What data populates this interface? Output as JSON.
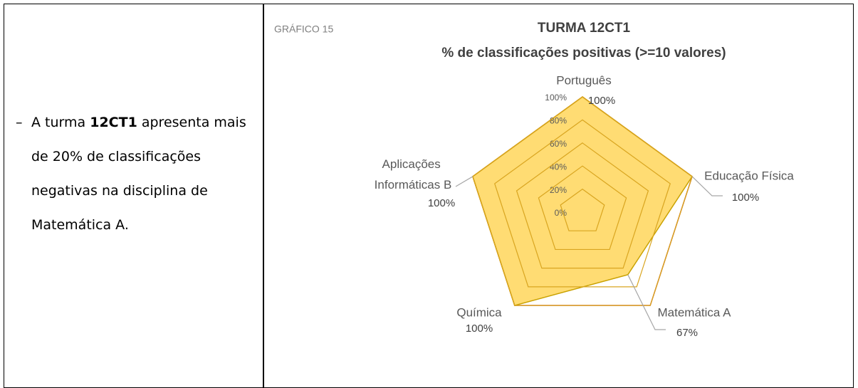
{
  "text": {
    "lead": "A turma",
    "strong": "12CT1",
    "rest": "apresenta mais de 20% de classificações negativas na disciplina de Matemática A."
  },
  "chart_data": {
    "type": "radar",
    "caption": "GRÁFICO 15",
    "title": "TURMA 12CT1",
    "subtitle": "% de classificações positivas (>=10 valores)",
    "categories": [
      "Português",
      "Educação Física",
      "Matemática A",
      "Química",
      "Aplicações Informáticas B"
    ],
    "series": [
      {
        "color": "#c55a11",
        "values": [
          100,
          100,
          100,
          100,
          100
        ]
      },
      {
        "color": "#ffc000",
        "values": [
          100,
          100,
          67,
          100,
          100
        ],
        "value_labels": [
          "100%",
          "100%",
          "67%",
          "100%",
          "100%"
        ]
      }
    ],
    "ylim": [
      0,
      100
    ],
    "yticks": [
      {
        "value": 0,
        "label": "0%"
      },
      {
        "value": 20,
        "label": "20%"
      },
      {
        "value": 40,
        "label": "40%"
      },
      {
        "value": 60,
        "label": "60%"
      },
      {
        "value": 80,
        "label": "80%"
      },
      {
        "value": 100,
        "label": "100%"
      }
    ],
    "grid": true
  }
}
